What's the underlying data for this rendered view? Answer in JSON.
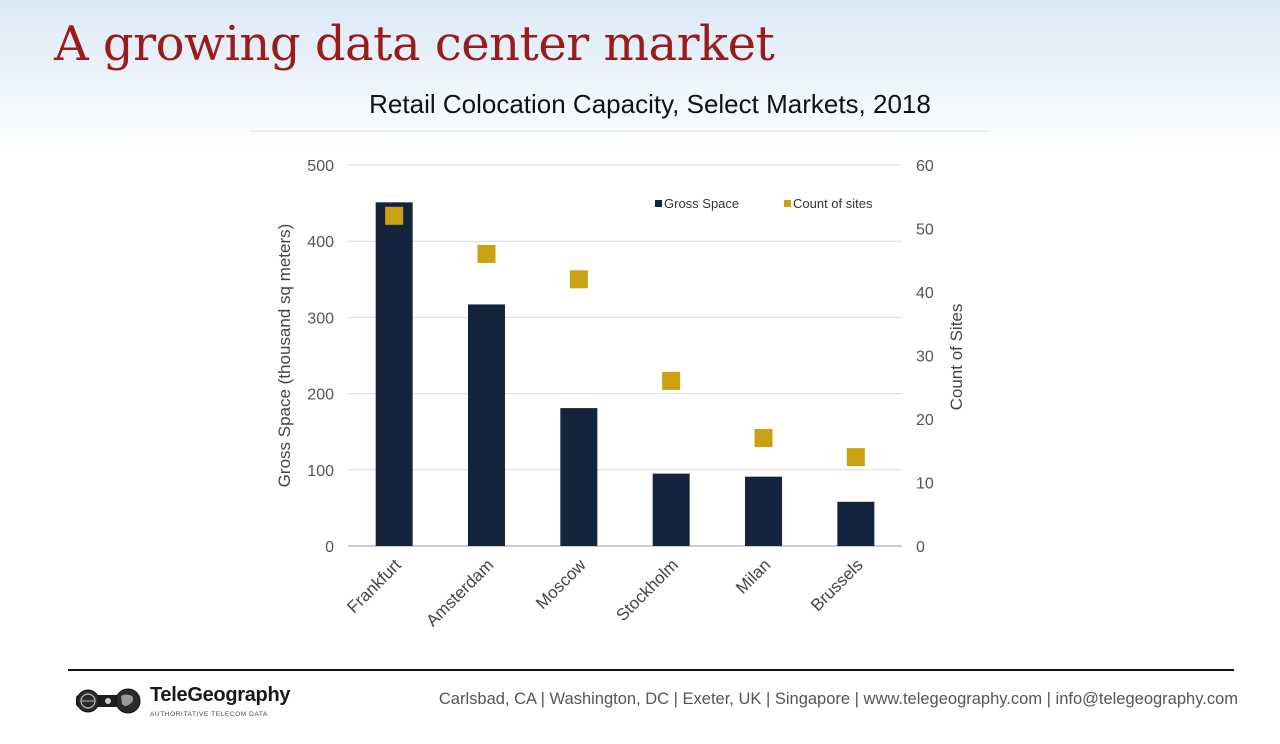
{
  "slide": {
    "title": "A growing data center market"
  },
  "chart_data": {
    "type": "bar",
    "title": "Retail Colocation Capacity, Select Markets, 2018",
    "categories": [
      "Frankfurt",
      "Amsterdam",
      "Moscow",
      "Stockholm",
      "Milan",
      "Brussels"
    ],
    "series": [
      {
        "name": "Gross Space",
        "type": "bar",
        "axis": "left",
        "color": "#14243f",
        "values": [
          451,
          317,
          181,
          95,
          91,
          58
        ]
      },
      {
        "name": "Count of sites",
        "type": "scatter",
        "marker": "square",
        "axis": "right",
        "color": "#c9a112",
        "values": [
          52,
          46,
          42,
          26,
          17,
          14
        ]
      }
    ],
    "ylabel": "Gross Space (thousand sq meters)",
    "y2label": "Count of Sites",
    "ylim": [
      0,
      500
    ],
    "y2lim": [
      0,
      60
    ],
    "yticks": [
      "0",
      "100",
      "200",
      "300",
      "400",
      "500"
    ],
    "y2ticks": [
      "0",
      "10",
      "20",
      "30",
      "40",
      "50",
      "60"
    ],
    "grid": true,
    "legend_position": "top-right"
  },
  "footer": {
    "logo_name": "TeleGeography",
    "logo_tagline": "AUTHORITATIVE TELECOM DATA",
    "contact": "Carlsbad, CA | Washington, DC | Exeter, UK | Singapore | www.telegeography.com | info@telegeography.com"
  }
}
